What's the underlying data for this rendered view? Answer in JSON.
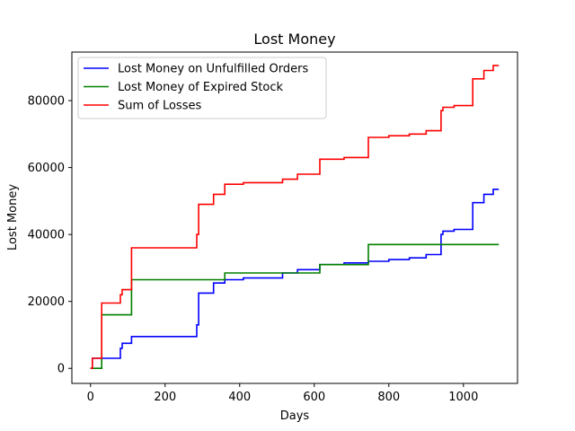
{
  "chart_data": {
    "type": "line",
    "title": "Lost Money",
    "xlabel": "Days",
    "ylabel": "Lost Money",
    "xlim": [
      -50,
      1145
    ],
    "ylim": [
      -4500,
      94500
    ],
    "xticks": [
      0,
      200,
      400,
      600,
      800,
      1000
    ],
    "yticks": [
      0,
      20000,
      40000,
      60000,
      80000
    ],
    "legend_position": "top-left",
    "series": [
      {
        "name": "Lost Money on Unfulfilled Orders",
        "color": "#0000ff",
        "step": true,
        "points": [
          [
            0,
            0
          ],
          [
            5,
            3000
          ],
          [
            80,
            6000
          ],
          [
            85,
            7500
          ],
          [
            110,
            9500
          ],
          [
            285,
            13000
          ],
          [
            290,
            22500
          ],
          [
            330,
            25500
          ],
          [
            360,
            26500
          ],
          [
            410,
            27000
          ],
          [
            515,
            28500
          ],
          [
            555,
            29500
          ],
          [
            615,
            31000
          ],
          [
            680,
            31500
          ],
          [
            745,
            32000
          ],
          [
            800,
            32500
          ],
          [
            855,
            33000
          ],
          [
            900,
            34000
          ],
          [
            940,
            40000
          ],
          [
            945,
            41000
          ],
          [
            975,
            41500
          ],
          [
            1025,
            49500
          ],
          [
            1055,
            52000
          ],
          [
            1080,
            53500
          ],
          [
            1095,
            53500
          ]
        ]
      },
      {
        "name": "Lost Money of Expired Stock",
        "color": "#008000",
        "step": true,
        "points": [
          [
            0,
            0
          ],
          [
            30,
            16000
          ],
          [
            110,
            26500
          ],
          [
            360,
            28500
          ],
          [
            615,
            31000
          ],
          [
            745,
            37000
          ],
          [
            1095,
            37000
          ]
        ]
      },
      {
        "name": "Sum of Losses",
        "color": "#ff0000",
        "step": true,
        "points": [
          [
            0,
            0
          ],
          [
            5,
            3000
          ],
          [
            30,
            19500
          ],
          [
            80,
            22000
          ],
          [
            85,
            23500
          ],
          [
            110,
            36000
          ],
          [
            285,
            40000
          ],
          [
            290,
            49000
          ],
          [
            330,
            52000
          ],
          [
            360,
            55000
          ],
          [
            410,
            55500
          ],
          [
            515,
            56500
          ],
          [
            555,
            58000
          ],
          [
            615,
            62500
          ],
          [
            680,
            63000
          ],
          [
            745,
            69000
          ],
          [
            800,
            69500
          ],
          [
            855,
            70000
          ],
          [
            900,
            71000
          ],
          [
            940,
            77000
          ],
          [
            945,
            78000
          ],
          [
            975,
            78500
          ],
          [
            1025,
            86500
          ],
          [
            1055,
            89000
          ],
          [
            1080,
            90500
          ],
          [
            1095,
            90500
          ]
        ]
      }
    ]
  }
}
